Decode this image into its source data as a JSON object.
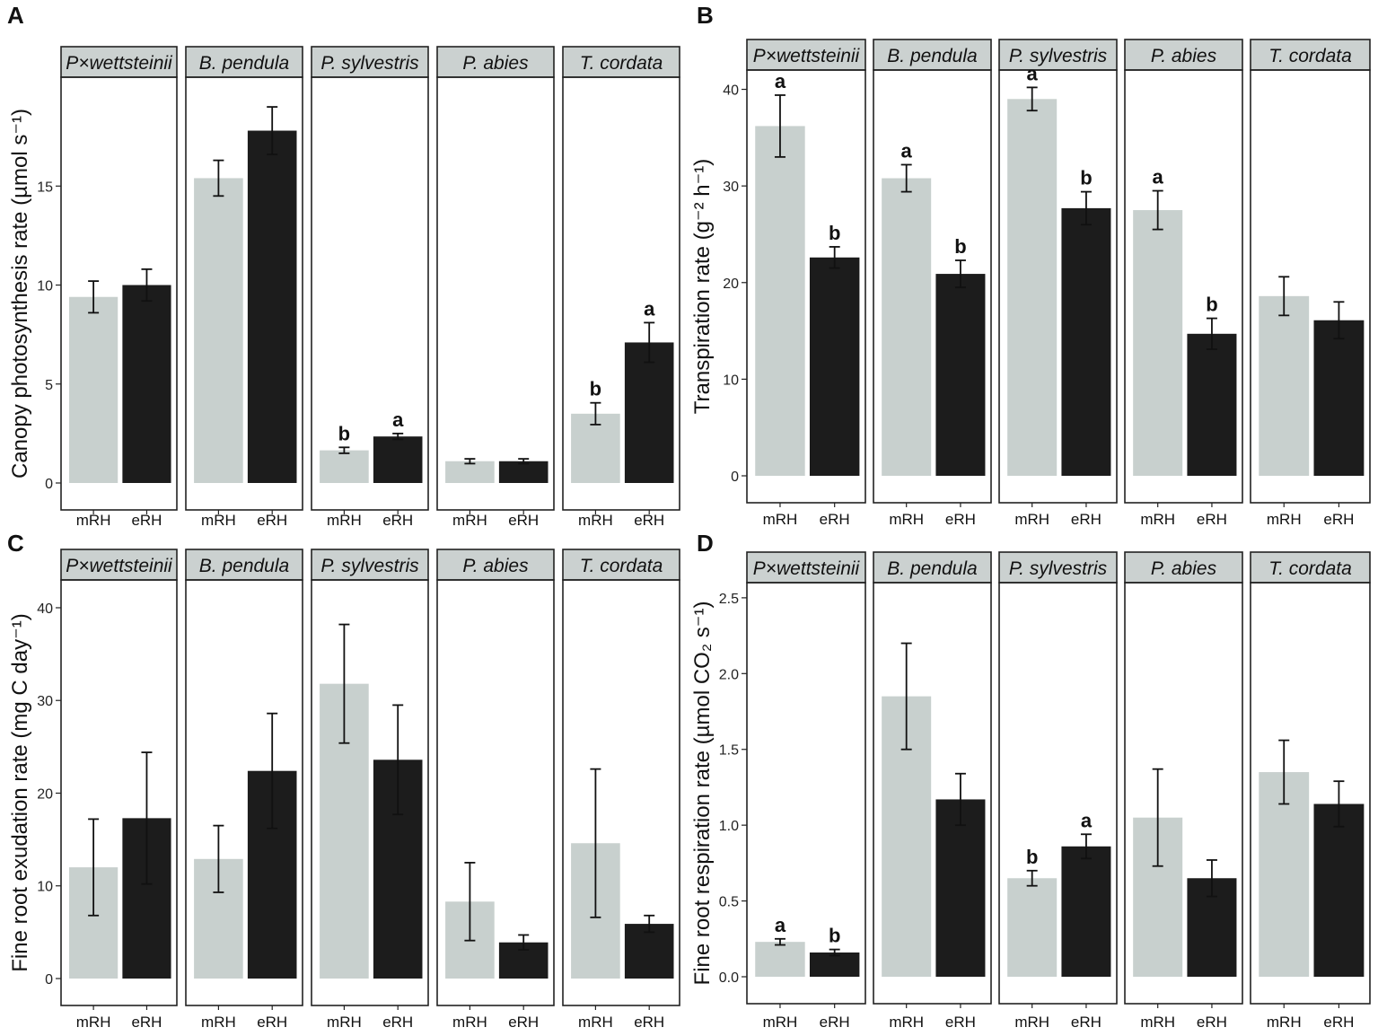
{
  "colors": {
    "mRH": "#c8d0ce",
    "eRH": "#1c1c1c",
    "strip": "#cbd1d0",
    "axis": "#222222"
  },
  "chart_data": [
    {
      "panel": "A",
      "type": "bar",
      "ylabel": "Canopy photosynthesis rate (µmol s⁻¹)",
      "ylim": [
        0,
        20.5
      ],
      "yticks": [
        0,
        5,
        10,
        15
      ],
      "categories": [
        "mRH",
        "eRH"
      ],
      "facets": [
        {
          "name": "P×wettsteinii",
          "values": [
            9.4,
            10.0
          ],
          "errors": [
            0.8,
            0.8
          ],
          "sig": [
            "",
            ""
          ]
        },
        {
          "name": "B. pendula",
          "values": [
            15.4,
            17.8
          ],
          "errors": [
            0.9,
            1.2
          ],
          "sig": [
            "",
            ""
          ]
        },
        {
          "name": "P. sylvestris",
          "values": [
            1.65,
            2.35
          ],
          "errors": [
            0.15,
            0.15
          ],
          "sig": [
            "b",
            "a"
          ]
        },
        {
          "name": "P. abies",
          "values": [
            1.1,
            1.1
          ],
          "errors": [
            0.12,
            0.12
          ],
          "sig": [
            "",
            ""
          ]
        },
        {
          "name": "T. cordata",
          "values": [
            3.5,
            7.1
          ],
          "errors": [
            0.55,
            1.0
          ],
          "sig": [
            "b",
            "a"
          ]
        }
      ]
    },
    {
      "panel": "B",
      "type": "bar",
      "ylabel": "Transpiration rate (g⁻² h⁻¹)",
      "ylim": [
        0,
        42
      ],
      "yticks": [
        0,
        10,
        20,
        30,
        40
      ],
      "categories": [
        "mRH",
        "eRH"
      ],
      "facets": [
        {
          "name": "P×wettsteinii",
          "values": [
            36.2,
            22.6
          ],
          "errors": [
            3.2,
            1.1
          ],
          "sig": [
            "a",
            "b"
          ]
        },
        {
          "name": "B. pendula",
          "values": [
            30.8,
            20.9
          ],
          "errors": [
            1.4,
            1.4
          ],
          "sig": [
            "a",
            "b"
          ]
        },
        {
          "name": "P. sylvestris",
          "values": [
            39.0,
            27.7
          ],
          "errors": [
            1.2,
            1.7
          ],
          "sig": [
            "a",
            "b"
          ]
        },
        {
          "name": "P. abies",
          "values": [
            27.5,
            14.7
          ],
          "errors": [
            2.0,
            1.6
          ],
          "sig": [
            "a",
            "b"
          ]
        },
        {
          "name": "T. cordata",
          "values": [
            18.6,
            16.1
          ],
          "errors": [
            2.0,
            1.9
          ],
          "sig": [
            "",
            ""
          ]
        }
      ]
    },
    {
      "panel": "C",
      "type": "bar",
      "ylabel": "Fine root exudation rate (mg C day⁻¹)",
      "ylim": [
        0,
        43
      ],
      "yticks": [
        0,
        10,
        20,
        30,
        40
      ],
      "categories": [
        "mRH",
        "eRH"
      ],
      "facets": [
        {
          "name": "P×wettsteinii",
          "values": [
            12.0,
            17.3
          ],
          "errors": [
            5.2,
            7.1
          ],
          "sig": [
            "",
            ""
          ]
        },
        {
          "name": "B. pendula",
          "values": [
            12.9,
            22.4
          ],
          "errors": [
            3.6,
            6.2
          ],
          "sig": [
            "",
            ""
          ]
        },
        {
          "name": "P. sylvestris",
          "values": [
            31.8,
            23.6
          ],
          "errors": [
            6.4,
            5.9
          ],
          "sig": [
            "",
            ""
          ]
        },
        {
          "name": "P. abies",
          "values": [
            8.3,
            3.9
          ],
          "errors": [
            4.2,
            0.8
          ],
          "sig": [
            "",
            ""
          ]
        },
        {
          "name": "T. cordata",
          "values": [
            14.6,
            5.9
          ],
          "errors": [
            8.0,
            0.9
          ],
          "sig": [
            "",
            ""
          ]
        }
      ]
    },
    {
      "panel": "D",
      "type": "bar",
      "ylabel": "Fine root respiration rate (µmol CO₂ s⁻¹)",
      "ylim": [
        0,
        2.6
      ],
      "yticks": [
        0.0,
        0.5,
        1.0,
        1.5,
        2.0,
        2.5
      ],
      "categories": [
        "mRH",
        "eRH"
      ],
      "facets": [
        {
          "name": "P×wettsteinii",
          "values": [
            0.23,
            0.16
          ],
          "errors": [
            0.02,
            0.02
          ],
          "sig": [
            "a",
            "b"
          ]
        },
        {
          "name": "B. pendula",
          "values": [
            1.85,
            1.17
          ],
          "errors": [
            0.35,
            0.17
          ],
          "sig": [
            "",
            ""
          ]
        },
        {
          "name": "P. sylvestris",
          "values": [
            0.65,
            0.86
          ],
          "errors": [
            0.05,
            0.08
          ],
          "sig": [
            "b",
            "a"
          ]
        },
        {
          "name": "P. abies",
          "values": [
            1.05,
            0.65
          ],
          "errors": [
            0.32,
            0.12
          ],
          "sig": [
            "",
            ""
          ]
        },
        {
          "name": "T. cordata",
          "values": [
            1.35,
            1.14
          ],
          "errors": [
            0.21,
            0.15
          ],
          "sig": [
            "",
            ""
          ]
        }
      ]
    }
  ]
}
